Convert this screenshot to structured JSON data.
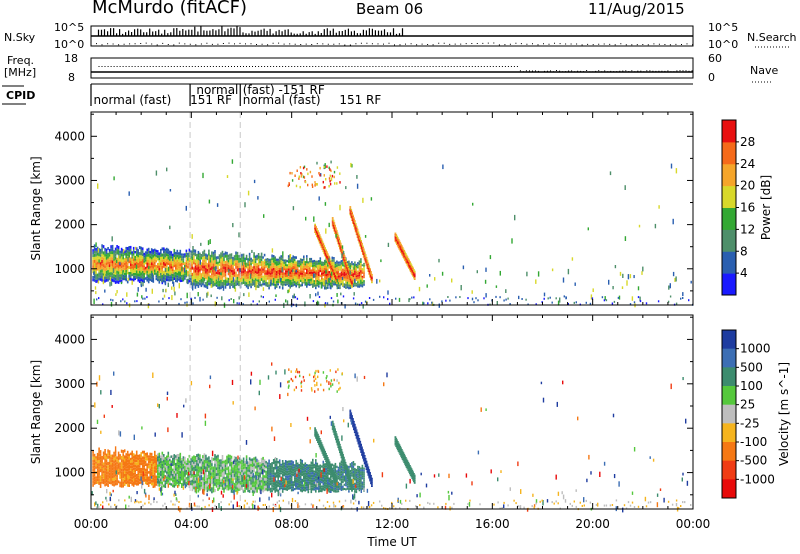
{
  "header": {
    "station": "McMurdo (fitACF)",
    "beam": "Beam 06",
    "date": "11/Aug/2015"
  },
  "left_labels": {
    "nsky": "N.Sky",
    "freq_line1": "Freq.",
    "freq_line2": "[MHz]",
    "cpid": "CPID"
  },
  "right_labels": {
    "nsearch": "N.Search",
    "nave": "Nave"
  },
  "noise_axis_ticks": {
    "left_top": "10^5",
    "left_bottom": "10^0",
    "right_top": "10^5",
    "right_bottom": "10^0"
  },
  "freq_axis_ticks": {
    "left_top": "18",
    "left_bottom": "8",
    "right_top": "60",
    "right_bottom": "0"
  },
  "cpid_labels": [
    {
      "text": "normal (fast)",
      "row": "lower",
      "start_hour": 0.1
    },
    {
      "text": "151 RF",
      "row": "lower",
      "start_hour": 3.95
    },
    {
      "text": "normal",
      "row": "upper",
      "start_hour": 4.2
    },
    {
      "text": "(fast) -151 RF",
      "row": "upper",
      "start_hour": 6.05
    },
    {
      "text": "normal (fast)",
      "row": "lower",
      "start_hour": 6.05
    },
    {
      "text": "151 RF",
      "row": "lower",
      "start_hour": 9.9
    }
  ],
  "cpid_changes_hours": [
    3.95,
    5.95
  ],
  "chart_data": [
    {
      "type": "heatmap",
      "panel": "power",
      "ylabel": "Slant Range [km]",
      "xlabel": "Time UT",
      "xticks": [
        "00:00",
        "04:00",
        "08:00",
        "12:00",
        "16:00",
        "20:00",
        "00:00"
      ],
      "xlim_hours": [
        0,
        24
      ],
      "yticks": [
        1000,
        2000,
        3000,
        4000
      ],
      "ylim": [
        180,
        4550
      ],
      "colorbar": {
        "label": "Power [dB]",
        "ticks": [
          "4",
          "8",
          "12",
          "16",
          "20",
          "24",
          "28"
        ],
        "colors": [
          "#1a1aff",
          "#2a5fb0",
          "#4e8f6a",
          "#33a833",
          "#d8d82a",
          "#f5a52a",
          "#f56a1a",
          "#e81010"
        ]
      }
    },
    {
      "type": "heatmap",
      "panel": "velocity",
      "ylabel": "Slant Range [km]",
      "xlabel": "Time UT",
      "xticks": [
        "00:00",
        "04:00",
        "08:00",
        "12:00",
        "16:00",
        "20:00",
        "00:00"
      ],
      "xlim_hours": [
        0,
        24
      ],
      "yticks": [
        1000,
        2000,
        3000,
        4000
      ],
      "ylim": [
        180,
        4550
      ],
      "colorbar": {
        "label": "Velocity [m s^-1]",
        "ticks": [
          "1000",
          "500",
          "100",
          "25",
          "-25",
          "-100",
          "-500",
          "-1000"
        ],
        "colors": [
          "#1e3ca0",
          "#3c6eb4",
          "#3c8c6e",
          "#55c83c",
          "#bebebe",
          "#f5b41e",
          "#f57814",
          "#f03c14",
          "#e80a0a"
        ]
      }
    }
  ]
}
